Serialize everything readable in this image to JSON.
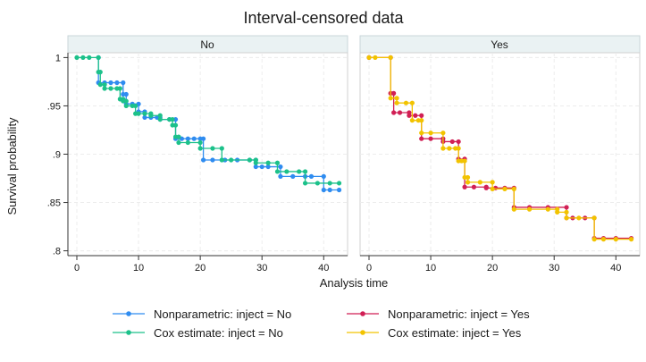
{
  "chart_data": {
    "type": "line",
    "title": "Interval-censored data",
    "xlabel": "Analysis time",
    "ylabel": "Survival probability",
    "xlim": [
      0,
      43
    ],
    "ylim": [
      0.795,
      1.005
    ],
    "xticks": [
      0,
      10,
      20,
      30,
      40
    ],
    "yticks": [
      0.8,
      0.85,
      0.9,
      0.95,
      1
    ],
    "ytick_labels": [
      ".8",
      ".85",
      ".9",
      ".95",
      "1"
    ],
    "grid": true,
    "legend_position": "bottom",
    "panels": [
      {
        "label": "No",
        "series": [
          {
            "name": "Nonparametric: inject = No",
            "color": "#2f8cf0",
            "points": [
              [
                3.5,
                1.0
              ],
              [
                3.5,
                0.974
              ],
              [
                4.5,
                0.974
              ],
              [
                5.5,
                0.974
              ],
              [
                6.5,
                0.974
              ],
              [
                7.5,
                0.974
              ],
              [
                7.5,
                0.962
              ],
              [
                8.0,
                0.962
              ],
              [
                8.0,
                0.952
              ],
              [
                9.0,
                0.952
              ],
              [
                10.0,
                0.952
              ],
              [
                10.0,
                0.944
              ],
              [
                11.0,
                0.944
              ],
              [
                11.0,
                0.938
              ],
              [
                12.0,
                0.938
              ],
              [
                13.0,
                0.938
              ],
              [
                13.5,
                0.938
              ],
              [
                13.5,
                0.936
              ],
              [
                15.0,
                0.936
              ],
              [
                16.0,
                0.936
              ],
              [
                16.0,
                0.916
              ],
              [
                17.0,
                0.916
              ],
              [
                18.0,
                0.916
              ],
              [
                19.0,
                0.916
              ],
              [
                20.0,
                0.916
              ],
              [
                20.5,
                0.916
              ],
              [
                20.5,
                0.894
              ],
              [
                22.0,
                0.894
              ],
              [
                24.0,
                0.894
              ],
              [
                26.0,
                0.894
              ],
              [
                28.0,
                0.894
              ],
              [
                29.0,
                0.894
              ],
              [
                29.0,
                0.887
              ],
              [
                30.0,
                0.887
              ],
              [
                31.0,
                0.887
              ],
              [
                33.0,
                0.887
              ],
              [
                33.0,
                0.877
              ],
              [
                35.0,
                0.877
              ],
              [
                37.0,
                0.877
              ],
              [
                38.0,
                0.877
              ],
              [
                40.0,
                0.877
              ],
              [
                40.0,
                0.863
              ],
              [
                41.0,
                0.863
              ],
              [
                42.5,
                0.863
              ]
            ]
          },
          {
            "name": "Cox estimate: inject = No",
            "color": "#1cc18a",
            "points": [
              [
                0.0,
                1.0
              ],
              [
                1.0,
                1.0
              ],
              [
                2.0,
                1.0
              ],
              [
                3.5,
                1.0
              ],
              [
                3.5,
                0.985
              ],
              [
                3.8,
                0.985
              ],
              [
                3.8,
                0.972
              ],
              [
                4.5,
                0.972
              ],
              [
                4.5,
                0.968
              ],
              [
                5.5,
                0.968
              ],
              [
                6.5,
                0.968
              ],
              [
                7.0,
                0.968
              ],
              [
                7.0,
                0.957
              ],
              [
                7.5,
                0.957
              ],
              [
                7.5,
                0.955
              ],
              [
                8.0,
                0.955
              ],
              [
                8.0,
                0.95
              ],
              [
                9.0,
                0.95
              ],
              [
                9.5,
                0.95
              ],
              [
                9.5,
                0.942
              ],
              [
                10.0,
                0.942
              ],
              [
                11.0,
                0.942
              ],
              [
                12.0,
                0.942
              ],
              [
                12.0,
                0.94
              ],
              [
                13.5,
                0.94
              ],
              [
                13.5,
                0.936
              ],
              [
                15.0,
                0.936
              ],
              [
                15.5,
                0.936
              ],
              [
                15.5,
                0.93
              ],
              [
                16.0,
                0.93
              ],
              [
                16.0,
                0.918
              ],
              [
                16.5,
                0.918
              ],
              [
                16.5,
                0.912
              ],
              [
                18.0,
                0.912
              ],
              [
                20.0,
                0.912
              ],
              [
                20.0,
                0.906
              ],
              [
                22.0,
                0.906
              ],
              [
                23.5,
                0.906
              ],
              [
                23.5,
                0.894
              ],
              [
                25.0,
                0.894
              ],
              [
                28.0,
                0.894
              ],
              [
                29.0,
                0.894
              ],
              [
                29.0,
                0.891
              ],
              [
                31.0,
                0.891
              ],
              [
                32.5,
                0.891
              ],
              [
                32.5,
                0.882
              ],
              [
                34.0,
                0.882
              ],
              [
                36.0,
                0.882
              ],
              [
                37.0,
                0.882
              ],
              [
                37.0,
                0.87
              ],
              [
                39.0,
                0.87
              ],
              [
                41.0,
                0.87
              ],
              [
                42.5,
                0.87
              ]
            ]
          }
        ]
      },
      {
        "label": "Yes",
        "series": [
          {
            "name": "Nonparametric: inject = Yes",
            "color": "#d11f55",
            "points": [
              [
                0.0,
                1.0
              ],
              [
                3.5,
                1.0
              ],
              [
                3.5,
                0.963
              ],
              [
                4.0,
                0.963
              ],
              [
                4.0,
                0.943
              ],
              [
                5.0,
                0.943
              ],
              [
                6.5,
                0.943
              ],
              [
                6.5,
                0.94
              ],
              [
                7.5,
                0.94
              ],
              [
                8.5,
                0.94
              ],
              [
                8.5,
                0.916
              ],
              [
                10.0,
                0.916
              ],
              [
                12.0,
                0.916
              ],
              [
                12.0,
                0.913
              ],
              [
                13.5,
                0.913
              ],
              [
                14.5,
                0.913
              ],
              [
                14.5,
                0.895
              ],
              [
                15.5,
                0.895
              ],
              [
                15.5,
                0.866
              ],
              [
                17.0,
                0.866
              ],
              [
                19.0,
                0.866
              ],
              [
                19.0,
                0.865
              ],
              [
                20.5,
                0.865
              ],
              [
                22.0,
                0.865
              ],
              [
                23.5,
                0.865
              ],
              [
                23.5,
                0.845
              ],
              [
                26.0,
                0.845
              ],
              [
                29.0,
                0.845
              ],
              [
                32.0,
                0.845
              ],
              [
                32.0,
                0.834
              ],
              [
                33.0,
                0.834
              ],
              [
                35.0,
                0.834
              ],
              [
                36.5,
                0.834
              ],
              [
                36.5,
                0.813
              ],
              [
                38.0,
                0.813
              ],
              [
                40.0,
                0.813
              ],
              [
                42.5,
                0.813
              ]
            ]
          },
          {
            "name": "Cox estimate: inject = Yes",
            "color": "#f2c300",
            "points": [
              [
                0.0,
                1.0
              ],
              [
                1.0,
                1.0
              ],
              [
                3.5,
                1.0
              ],
              [
                3.5,
                0.958
              ],
              [
                4.5,
                0.958
              ],
              [
                4.5,
                0.953
              ],
              [
                6.0,
                0.953
              ],
              [
                7.0,
                0.953
              ],
              [
                7.0,
                0.935
              ],
              [
                8.0,
                0.935
              ],
              [
                8.5,
                0.935
              ],
              [
                8.5,
                0.922
              ],
              [
                10.0,
                0.922
              ],
              [
                12.0,
                0.922
              ],
              [
                12.0,
                0.906
              ],
              [
                13.0,
                0.906
              ],
              [
                14.0,
                0.906
              ],
              [
                14.5,
                0.906
              ],
              [
                14.5,
                0.893
              ],
              [
                15.0,
                0.893
              ],
              [
                15.5,
                0.893
              ],
              [
                15.5,
                0.876
              ],
              [
                16.0,
                0.876
              ],
              [
                16.0,
                0.871
              ],
              [
                18.0,
                0.871
              ],
              [
                20.0,
                0.871
              ],
              [
                20.0,
                0.864
              ],
              [
                22.0,
                0.864
              ],
              [
                23.5,
                0.864
              ],
              [
                23.5,
                0.843
              ],
              [
                26.0,
                0.843
              ],
              [
                29.0,
                0.843
              ],
              [
                30.5,
                0.843
              ],
              [
                30.5,
                0.84
              ],
              [
                32.0,
                0.84
              ],
              [
                32.0,
                0.834
              ],
              [
                34.0,
                0.834
              ],
              [
                36.5,
                0.834
              ],
              [
                36.5,
                0.812
              ],
              [
                38.0,
                0.812
              ],
              [
                40.0,
                0.812
              ],
              [
                42.5,
                0.812
              ]
            ]
          }
        ]
      }
    ]
  }
}
